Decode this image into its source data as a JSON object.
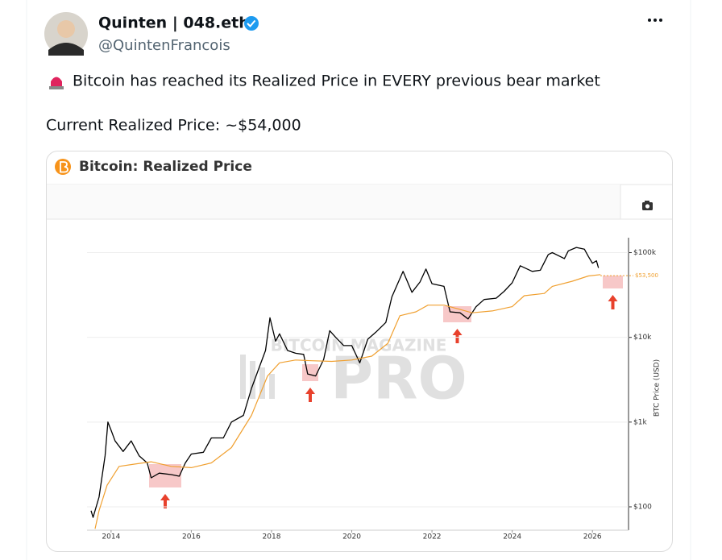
{
  "tweet": {
    "name": "Quinten | 048.eth",
    "handle": "@QuintenFrancois",
    "text_line_1": "Bitcoin has reached its Realized Price in EVERY previous bear market",
    "text_line_2": "Current Realized Price: ~$54,000"
  },
  "watermark": {
    "top": "BITCOIN MAGAZINE",
    "main": "PRO"
  },
  "chart_data": {
    "type": "line",
    "title": "Bitcoin: Realized Price",
    "y_label": "BTC Price (USD)",
    "log_scale": true,
    "grid": true,
    "xlim": [
      2013.4,
      2026.9
    ],
    "xticks": [
      2014,
      2016,
      2018,
      2020,
      2022,
      2024,
      2026
    ],
    "ylim": [
      53,
      150000
    ],
    "yticks": [
      {
        "value": 100,
        "label": "$100"
      },
      {
        "value": 1000,
        "label": "$1k"
      },
      {
        "value": 10000,
        "label": "$10k"
      },
      {
        "value": 100000,
        "label": "$100k"
      }
    ],
    "annotations": [
      {
        "value": 53500,
        "label": "$53,500"
      }
    ],
    "series": [
      {
        "name": "BTC Price",
        "color": "#000000",
        "x": [
          2013.5,
          2013.55,
          2013.7,
          2013.85,
          2013.92,
          2014.0,
          2014.1,
          2014.3,
          2014.5,
          2014.7,
          2014.9,
          2015.0,
          2015.2,
          2015.5,
          2015.7,
          2015.85,
          2016.0,
          2016.3,
          2016.5,
          2016.8,
          2017.0,
          2017.3,
          2017.5,
          2017.7,
          2017.85,
          2017.96,
          2018.1,
          2018.2,
          2018.4,
          2018.6,
          2018.8,
          2018.9,
          2019.1,
          2019.3,
          2019.45,
          2019.6,
          2019.8,
          2020.0,
          2020.2,
          2020.4,
          2020.6,
          2020.85,
          2021.0,
          2021.28,
          2021.5,
          2021.7,
          2021.85,
          2022.0,
          2022.3,
          2022.45,
          2022.7,
          2022.9,
          2023.1,
          2023.3,
          2023.6,
          2023.8,
          2024.0,
          2024.2,
          2024.5,
          2024.7,
          2024.9,
          2025.0,
          2025.3,
          2025.4,
          2025.6,
          2025.8,
          2025.9,
          2026.0,
          2026.1,
          2026.15
        ],
        "values": [
          90,
          75,
          130,
          400,
          1000,
          800,
          600,
          450,
          600,
          400,
          330,
          220,
          250,
          240,
          230,
          330,
          420,
          440,
          650,
          650,
          1000,
          1200,
          2500,
          4500,
          7000,
          17000,
          9000,
          11000,
          7000,
          6500,
          6300,
          3700,
          3500,
          5500,
          12000,
          10000,
          8000,
          8000,
          5000,
          9500,
          11500,
          15000,
          30000,
          60000,
          34000,
          45000,
          64000,
          43000,
          40000,
          20000,
          19500,
          16500,
          23000,
          28000,
          29000,
          35000,
          44000,
          70000,
          60000,
          62000,
          95000,
          100000,
          85000,
          105000,
          115000,
          110000,
          90000,
          75000,
          80000,
          66000
        ]
      },
      {
        "name": "Realized Price",
        "color": "#f0a030",
        "x": [
          2013.6,
          2013.7,
          2013.9,
          2014.2,
          2014.6,
          2015.0,
          2015.5,
          2016.0,
          2016.5,
          2017.0,
          2017.5,
          2017.9,
          2018.2,
          2018.6,
          2019.0,
          2019.5,
          2020.0,
          2020.5,
          2020.9,
          2021.2,
          2021.6,
          2021.9,
          2022.3,
          2022.6,
          2023.0,
          2023.5,
          2024.0,
          2024.3,
          2024.8,
          2025.0,
          2025.5,
          2025.9,
          2026.2
        ],
        "values": [
          55,
          90,
          180,
          300,
          320,
          340,
          300,
          290,
          330,
          500,
          1200,
          3500,
          5000,
          5400,
          5300,
          5200,
          5400,
          6000,
          8500,
          18000,
          20000,
          24000,
          24000,
          22000,
          19500,
          20500,
          23000,
          31000,
          33000,
          40000,
          46000,
          53000,
          55000
        ]
      }
    ]
  }
}
